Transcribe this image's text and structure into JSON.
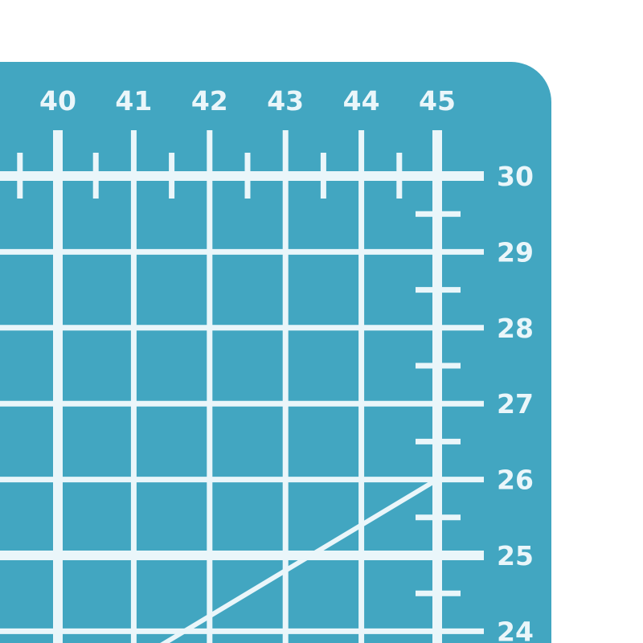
{
  "colors": {
    "mat": "#42A6C1",
    "lines": "#EAF6FA",
    "background": "#FFFFFF"
  },
  "column_labels": [
    "40",
    "41",
    "42",
    "43",
    "44",
    "45"
  ],
  "row_labels": [
    "30",
    "29",
    "28",
    "27",
    "26",
    "25",
    "24"
  ],
  "diagonal_angle_degrees": 30
}
